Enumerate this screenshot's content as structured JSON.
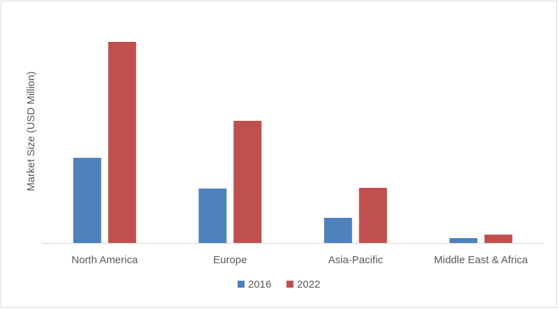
{
  "chart_data": {
    "type": "bar",
    "title": "",
    "xlabel": "",
    "ylabel": "Market Size (USD Million)",
    "categories": [
      "North America",
      "Europe",
      "Asia-Pacific",
      "Middle East & Africa"
    ],
    "series": [
      {
        "name": "2016",
        "color": "#4f81bd",
        "values": [
          122,
          78,
          36,
          7
        ]
      },
      {
        "name": "2022",
        "color": "#c0504d",
        "values": [
          288,
          175,
          79,
          12
        ]
      }
    ],
    "ylim": [
      0,
      300
    ],
    "grid": false,
    "y_tick_labels_shown": false,
    "legend": "bottom"
  }
}
